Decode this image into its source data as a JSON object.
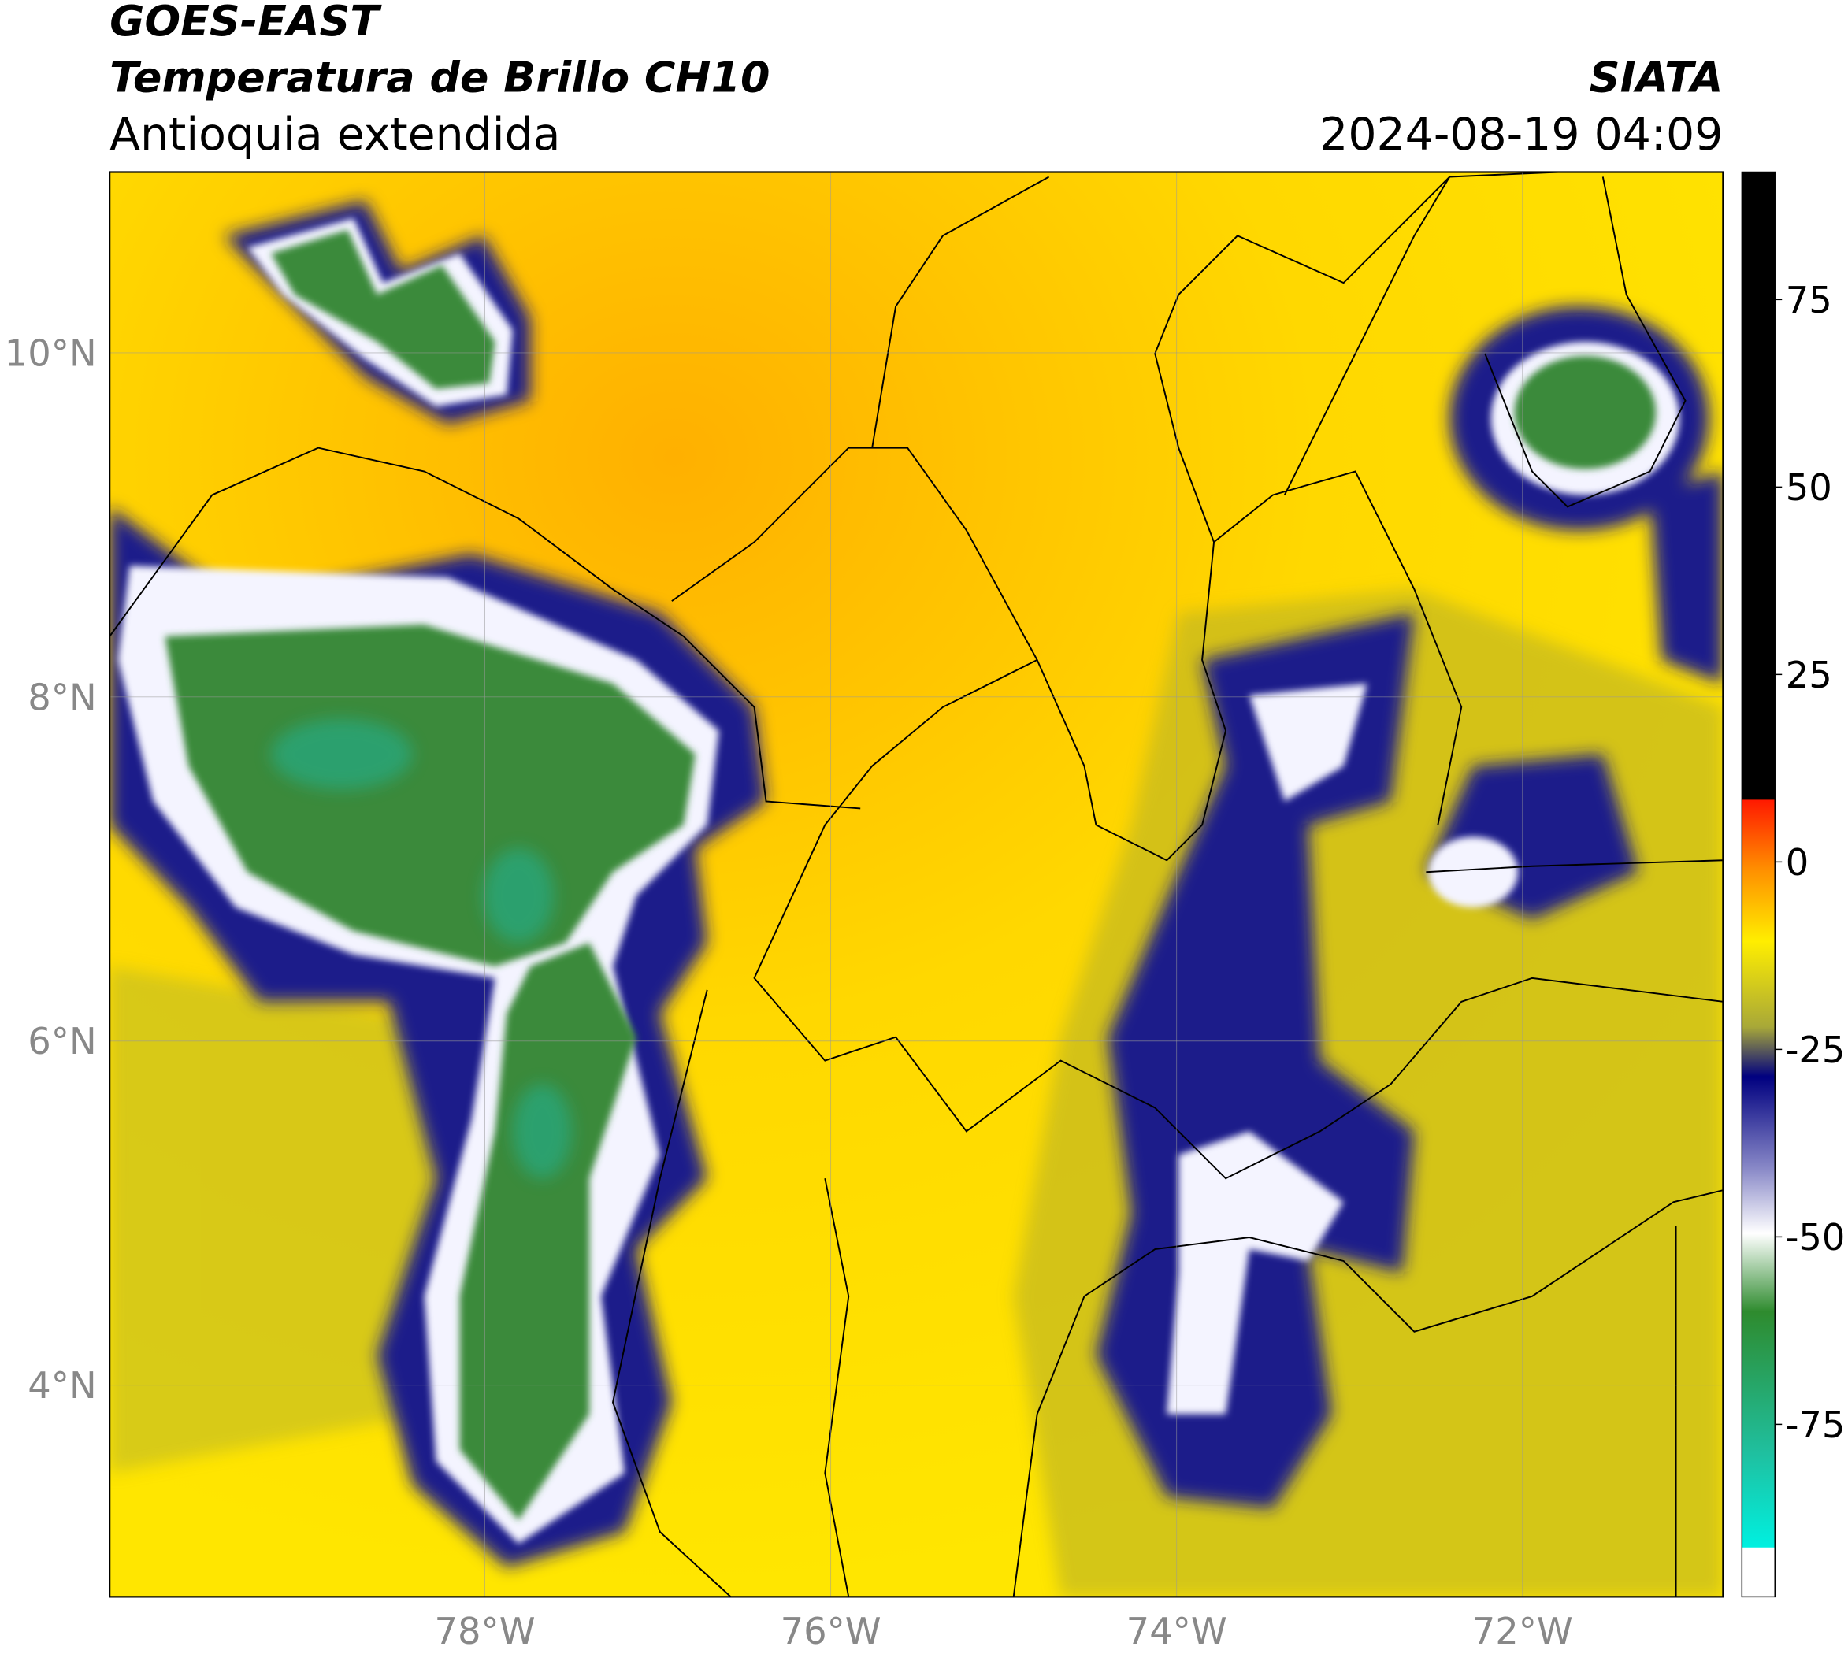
{
  "header": {
    "satellite": "GOES-EAST",
    "product": "Temperatura de Brillo CH10",
    "region": "Antioquia extendida",
    "source": "SIATA",
    "datetime": "2024-08-19 04:09"
  },
  "map": {
    "xlim": [
      -80.17,
      -70.84
    ],
    "ylim": [
      2.77,
      11.05
    ],
    "xticks": [
      {
        "value": -78,
        "label": "78°W"
      },
      {
        "value": -76,
        "label": "76°W"
      },
      {
        "value": -74,
        "label": "74°W"
      },
      {
        "value": -72,
        "label": "72°W"
      }
    ],
    "yticks": [
      {
        "value": 4,
        "label": "4°N"
      },
      {
        "value": 6,
        "label": "6°N"
      },
      {
        "value": 8,
        "label": "8°N"
      },
      {
        "value": 10,
        "label": "10°N"
      }
    ]
  },
  "colorbar": {
    "lim": [
      -98,
      92
    ],
    "ticks": [
      -75,
      -50,
      -25,
      0,
      25,
      50,
      75
    ]
  }
}
